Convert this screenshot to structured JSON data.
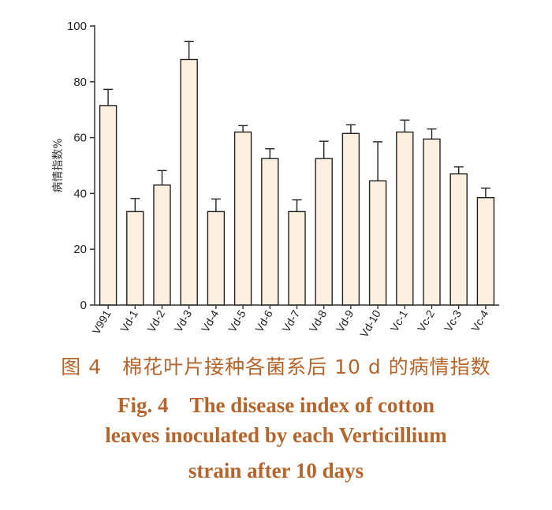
{
  "chart_data": {
    "type": "bar",
    "categories": [
      "V991",
      "Vd-1",
      "Vd-2",
      "Vd-3",
      "Vd-4",
      "Vd-5",
      "Vd-6",
      "Vd-7",
      "Vd-8",
      "Vd-9",
      "Vd-10",
      "Vc-1",
      "Vc-2",
      "Vc-3",
      "Vc-4"
    ],
    "values": [
      71.5,
      33.5,
      43,
      88,
      33.5,
      62,
      52.5,
      33.5,
      52.5,
      61.5,
      44.5,
      62,
      59.5,
      47,
      38.5
    ],
    "errors": [
      5.8,
      4.7,
      5.2,
      6.5,
      4.5,
      2.3,
      3.5,
      4.2,
      6.2,
      3.1,
      14,
      4.3,
      3.6,
      2.5,
      3.4
    ],
    "ylabel": "病情指数%",
    "yticks": [
      "0",
      "20",
      "40",
      "60",
      "80",
      "100"
    ],
    "ylim": [
      0,
      100
    ],
    "bar_fill": "#fdf0e0",
    "bar_stroke": "#222222",
    "grid": false
  },
  "caption": {
    "zh": "图 4　棉花叶片接种各菌系后 10 d 的病情指数",
    "en_line1": "Fig. 4　The disease index of cotton",
    "en_line2": "leaves inoculated by each Verticillium",
    "en_line3": "strain after 10 days",
    "color": "#b5652c"
  }
}
